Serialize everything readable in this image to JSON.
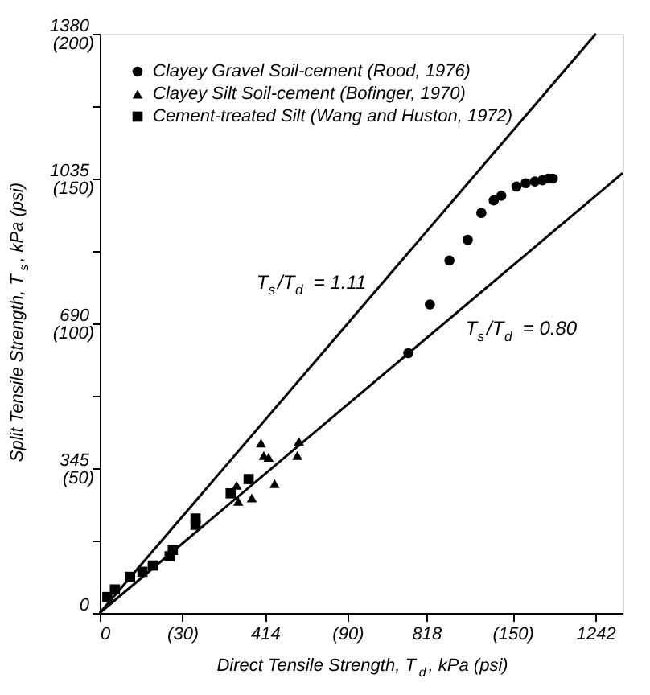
{
  "chart_data": {
    "type": "scatter",
    "xlabel": "Direct Tensile Strength, T$_{d}$, kPa (psi)",
    "ylabel": "Split Tensile Strength, T$_{s}$, kPa (psi)",
    "xlim": [
      0,
      1310
    ],
    "ylim": [
      0,
      1380
    ],
    "xticks": [
      0,
      414,
      818,
      1242
    ],
    "x2lim": [
      0,
      190
    ],
    "x2ticks": [
      {
        "value": 30,
        "label": "(30)"
      },
      {
        "value": 90,
        "label": "(90)"
      },
      {
        "value": 150,
        "label": "(150)"
      }
    ],
    "yticks": [
      0,
      {
        "value": 172.5,
        "label": null
      },
      345,
      {
        "value": 517.5,
        "label": null
      },
      690,
      {
        "value": 862.5,
        "label": null
      },
      1035,
      {
        "value": 1207.5,
        "label": null
      },
      1380
    ],
    "y2lim": [
      0,
      200
    ],
    "y2ticks": [
      {
        "value": 50,
        "label": "(50)"
      },
      {
        "value": 100,
        "label": "(100)"
      },
      {
        "value": 150,
        "label": "(150)"
      },
      {
        "value": 200,
        "label": "(200)"
      }
    ],
    "grid": false,
    "legend": "top left",
    "series": [
      {
        "name": "Clayey Gravel Soil-cement (Rood, 1976)",
        "color": "#000000",
        "marker": "circle",
        "x": [
          773,
          827,
          876,
          922,
          956,
          987,
          1006,
          1044,
          1067,
          1090,
          1109,
          1124,
          1135
        ],
        "values": [
          619,
          735,
          840,
          889,
          953,
          983,
          994,
          1016,
          1024,
          1028,
          1031,
          1035,
          1035
        ]
      },
      {
        "name": "Clayey Silt Soil-cement (Bofinger, 1970)",
        "color": "#000000",
        "marker": "triangle",
        "x": [
          404,
          411,
          423,
          499,
          495,
          438,
          347,
          381,
          343
        ],
        "values": [
          405,
          375,
          371,
          409,
          375,
          308,
          266,
          274,
          304
        ]
      },
      {
        "name": "Cement-treated Silt (Wang and Huston, 1972)",
        "color": "#000000",
        "marker": "square",
        "x": [
          373,
          328,
          240,
          240,
          183,
          175,
          133,
          107,
          76,
          38,
          19
        ],
        "values": [
          319,
          285,
          225,
          210,
          150,
          135,
          113,
          98,
          86,
          56,
          38
        ]
      },
      {
        "type": "line",
        "color": "#000000",
        "x": [
          0,
          1243
        ],
        "values": [
          0,
          1380
        ]
      },
      {
        "type": "line",
        "color": "#000000",
        "x": [
          0,
          1310
        ],
        "values": [
          0,
          1048
        ]
      }
    ],
    "annotations": [
      "T$_{s}$/T$_{d}$ = 1.11",
      "T$_{s}$/T$_{d}$ = 0.80"
    ]
  }
}
